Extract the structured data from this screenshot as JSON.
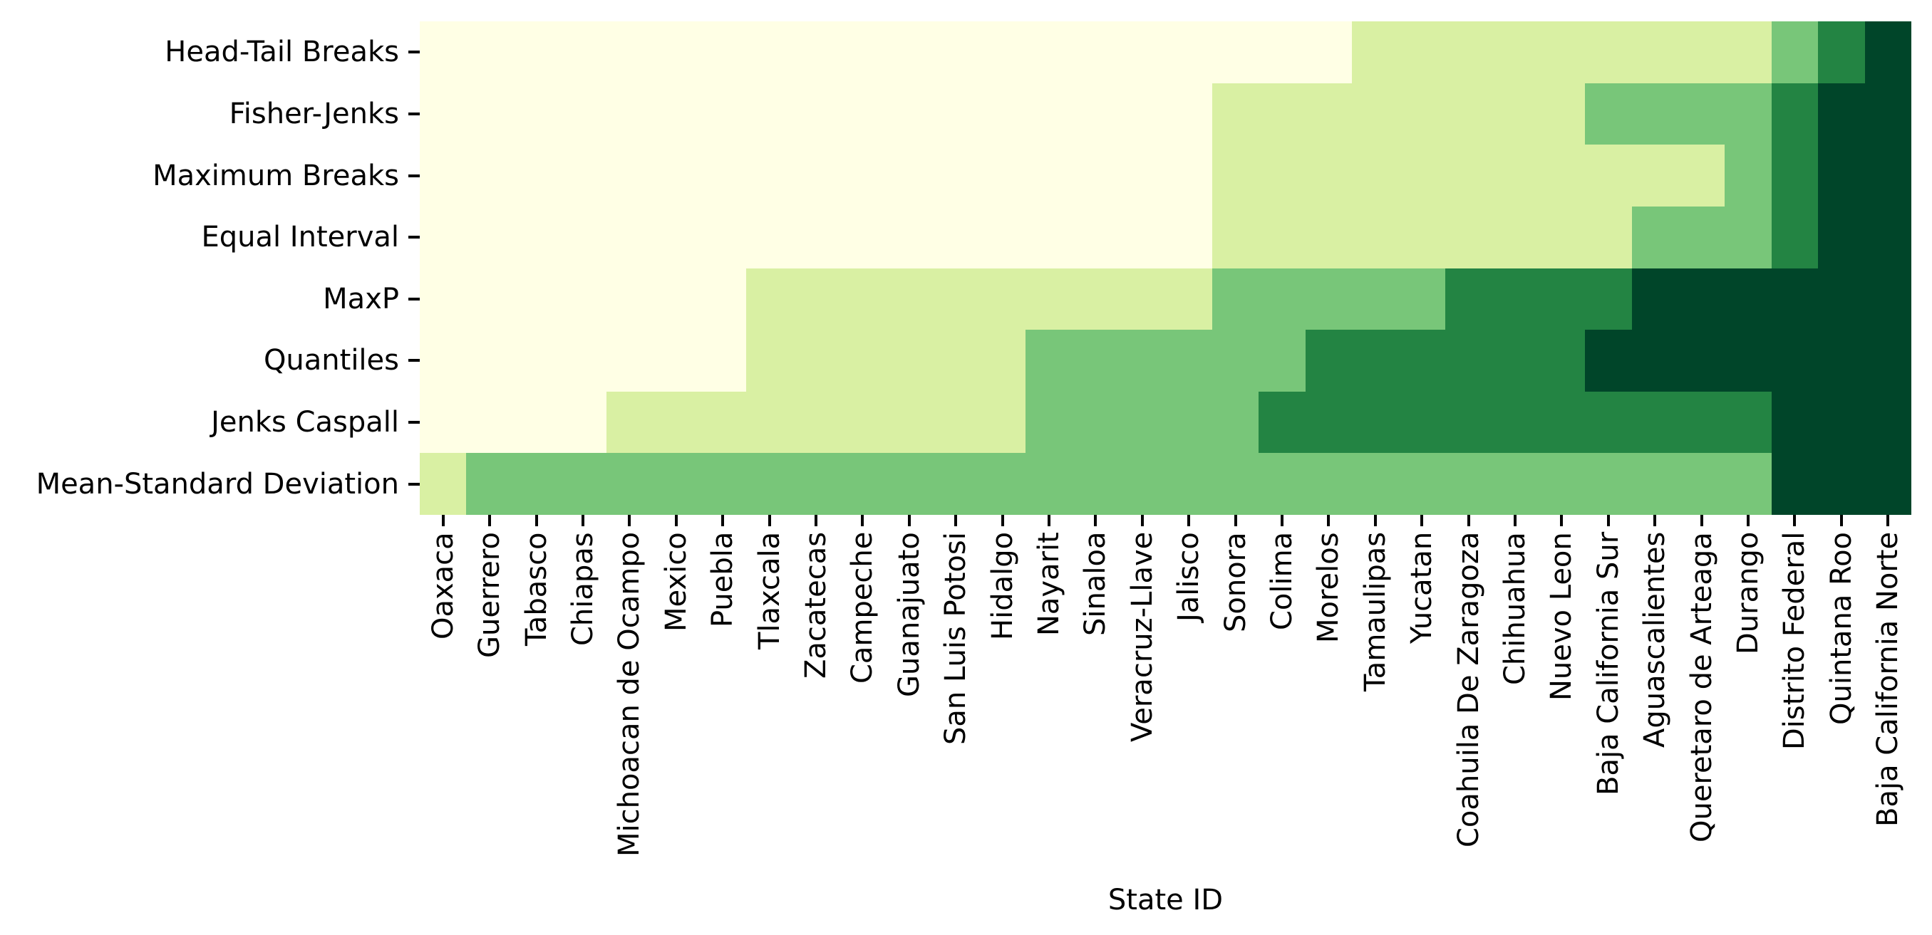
{
  "figure": {
    "background_color": "#ffffff",
    "text_color": "#000000",
    "tick_color": "#000000"
  },
  "chart_data": {
    "type": "heatmap",
    "title": "",
    "xlabel": "State ID",
    "ylabel": "",
    "legend": "none",
    "grid": false,
    "colormap": "YlGn",
    "class_range": [
      0,
      4
    ],
    "palette": [
      "#ffffe5",
      "#d9f0a3",
      "#78c679",
      "#238443",
      "#004529"
    ],
    "y_categories": [
      "Head-Tail Breaks",
      "Fisher-Jenks",
      "Maximum Breaks",
      "Equal Interval",
      "MaxP",
      "Quantiles",
      "Jenks Caspall",
      "Mean-Standard Deviation"
    ],
    "x_categories": [
      "Oaxaca",
      "Guerrero",
      "Tabasco",
      "Chiapas",
      "Michoacan de Ocampo",
      "Mexico",
      "Puebla",
      "Tlaxcala",
      "Zacatecas",
      "Campeche",
      "Guanajuato",
      "San Luis Potosi",
      "Hidalgo",
      "Nayarit",
      "Sinaloa",
      "Veracruz-Llave",
      "Jalisco",
      "Sonora",
      "Colima",
      "Morelos",
      "Tamaulipas",
      "Yucatan",
      "Coahuila De Zaragoza",
      "Chihuahua",
      "Nuevo Leon",
      "Baja California Sur",
      "Aguascalientes",
      "Queretaro de Arteaga",
      "Durango",
      "Distrito Federal",
      "Quintana Roo",
      "Baja California Norte"
    ],
    "values": [
      [
        0,
        0,
        0,
        0,
        0,
        0,
        0,
        0,
        0,
        0,
        0,
        0,
        0,
        0,
        0,
        0,
        0,
        0,
        0,
        0,
        1,
        1,
        1,
        1,
        1,
        1,
        1,
        1,
        1,
        2,
        3,
        4
      ],
      [
        0,
        0,
        0,
        0,
        0,
        0,
        0,
        0,
        0,
        0,
        0,
        0,
        0,
        0,
        0,
        0,
        0,
        1,
        1,
        1,
        1,
        1,
        1,
        1,
        1,
        2,
        2,
        2,
        2,
        3,
        4,
        4
      ],
      [
        0,
        0,
        0,
        0,
        0,
        0,
        0,
        0,
        0,
        0,
        0,
        0,
        0,
        0,
        0,
        0,
        0,
        1,
        1,
        1,
        1,
        1,
        1,
        1,
        1,
        1,
        1,
        1,
        2,
        3,
        4,
        4
      ],
      [
        0,
        0,
        0,
        0,
        0,
        0,
        0,
        0,
        0,
        0,
        0,
        0,
        0,
        0,
        0,
        0,
        0,
        1,
        1,
        1,
        1,
        1,
        1,
        1,
        1,
        1,
        2,
        2,
        2,
        3,
        4,
        4
      ],
      [
        0,
        0,
        0,
        0,
        0,
        0,
        0,
        1,
        1,
        1,
        1,
        1,
        1,
        1,
        1,
        1,
        1,
        2,
        2,
        2,
        2,
        2,
        3,
        3,
        3,
        3,
        4,
        4,
        4,
        4,
        4,
        4
      ],
      [
        0,
        0,
        0,
        0,
        0,
        0,
        0,
        1,
        1,
        1,
        1,
        1,
        1,
        2,
        2,
        2,
        2,
        2,
        2,
        3,
        3,
        3,
        3,
        3,
        3,
        4,
        4,
        4,
        4,
        4,
        4,
        4
      ],
      [
        0,
        0,
        0,
        0,
        1,
        1,
        1,
        1,
        1,
        1,
        1,
        1,
        1,
        2,
        2,
        2,
        2,
        2,
        3,
        3,
        3,
        3,
        3,
        3,
        3,
        3,
        3,
        3,
        3,
        4,
        4,
        4
      ],
      [
        1,
        2,
        2,
        2,
        2,
        2,
        2,
        2,
        2,
        2,
        2,
        2,
        2,
        2,
        2,
        2,
        2,
        2,
        2,
        2,
        2,
        2,
        2,
        2,
        2,
        2,
        2,
        2,
        2,
        4,
        4,
        4
      ]
    ]
  }
}
